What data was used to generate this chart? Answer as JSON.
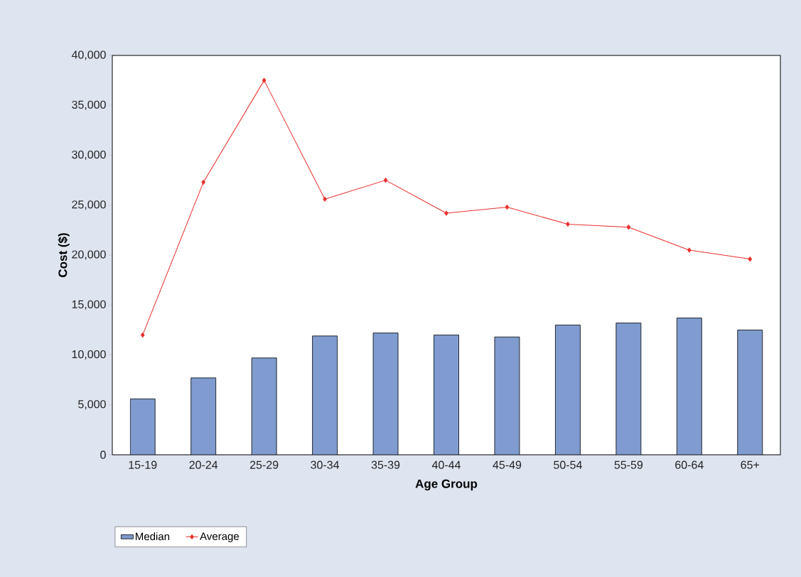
{
  "chart_data": {
    "type": "bar",
    "xlabel": "Age Group",
    "ylabel": "Cost ($)",
    "categories": [
      "15-19",
      "20-24",
      "25-29",
      "30-34",
      "35-39",
      "40-44",
      "45-49",
      "50-54",
      "55-59",
      "60-64",
      "65+"
    ],
    "series": [
      {
        "name": "Median",
        "color": "#7f9bcf",
        "values": [
          5600,
          7700,
          9700,
          11900,
          12200,
          12000,
          11800,
          13000,
          13200,
          13700,
          12500
        ]
      },
      {
        "name": "Average",
        "type": "line",
        "color": "#e8302c",
        "marker": "diamond",
        "values": [
          12000,
          27300,
          37500,
          25600,
          27500,
          24200,
          24800,
          23100,
          22800,
          20500,
          19600
        ]
      }
    ],
    "ylim": [
      0,
      40000
    ],
    "yticks": [
      {
        "value": 0,
        "label": "0"
      },
      {
        "value": 5000,
        "label": "5,000"
      },
      {
        "value": 10000,
        "label": "10,000"
      },
      {
        "value": 15000,
        "label": "15,000"
      },
      {
        "value": 20000,
        "label": "20,000"
      },
      {
        "value": 25000,
        "label": "25,000"
      },
      {
        "value": 30000,
        "label": "30,000"
      },
      {
        "value": 35000,
        "label": "35,000"
      },
      {
        "value": 40000,
        "label": "40,000"
      }
    ],
    "grid": false,
    "legend": "bottom"
  }
}
